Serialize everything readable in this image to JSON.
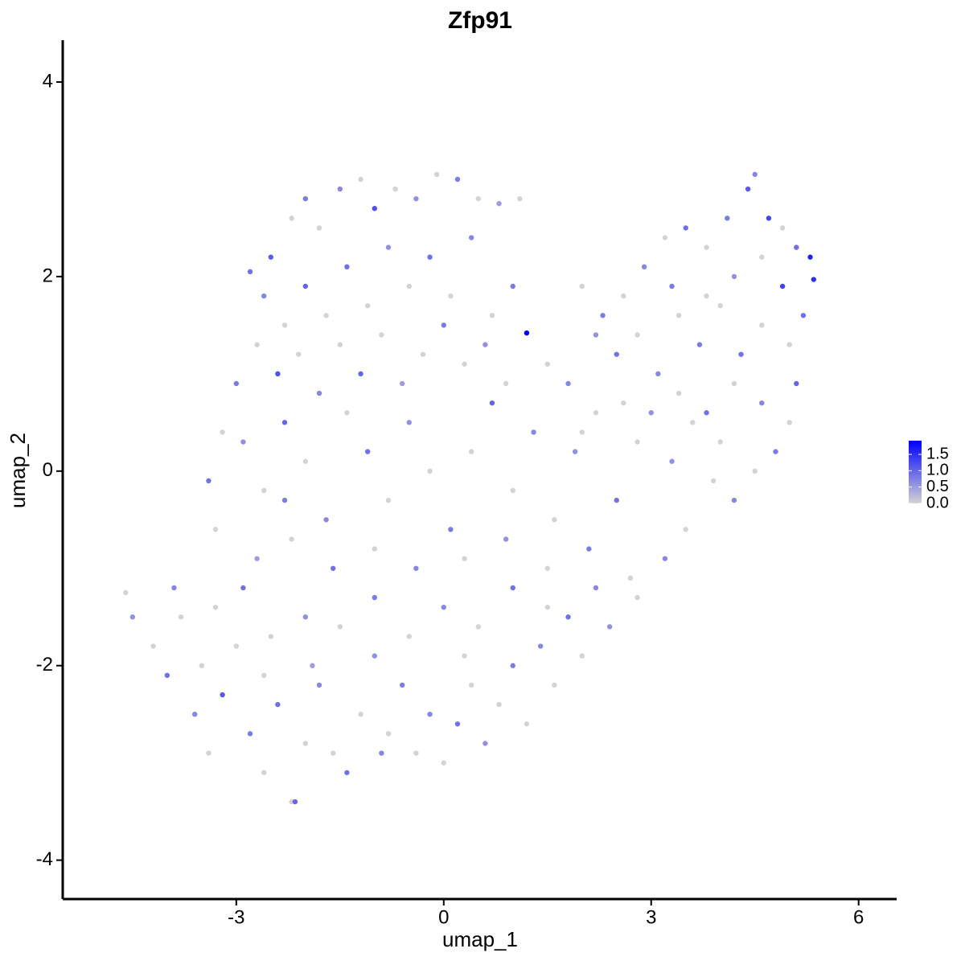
{
  "chart_data": {
    "type": "scatter",
    "title": "Zfp91",
    "x_label": "umap_1",
    "y_label": "umap_2",
    "xlim": [
      -5.51,
      6.55
    ],
    "ylim": [
      -4.4,
      4.43
    ],
    "xticks": [
      -3,
      0,
      3,
      6
    ],
    "yticks": [
      -4,
      -2,
      0,
      2,
      4
    ],
    "color_low": "#d3d3d3",
    "color_high": "#0000ff",
    "colorlim": [
      0,
      1.92
    ],
    "color_ticks": [
      {
        "value": 0,
        "label": "0.0"
      },
      {
        "value": 0.5,
        "label": "0.5"
      },
      {
        "value": 1,
        "label": "1.0"
      },
      {
        "value": 1.5,
        "label": "1.5"
      }
    ],
    "x": [
      -2.8,
      -2.5,
      -2.2,
      -2.0,
      -1.8,
      -1.5,
      -1.2,
      -1.0,
      -0.7,
      -0.4,
      -0.1,
      0.2,
      0.5,
      0.8,
      1.1,
      -2.6,
      -2.3,
      -2.0,
      -1.7,
      -1.4,
      -1.1,
      -0.8,
      -0.5,
      -0.2,
      0.1,
      0.4,
      0.7,
      1.0,
      -2.7,
      -2.4,
      -2.1,
      -1.8,
      -1.5,
      -1.2,
      -0.9,
      -0.6,
      -0.3,
      0.0,
      0.3,
      0.6,
      0.9,
      1.2,
      1.5,
      1.8,
      -3.0,
      -3.2,
      -3.4,
      -3.3,
      -2.9,
      -2.6,
      -2.3,
      -2.0,
      -1.7,
      -1.4,
      -1.1,
      -0.8,
      -0.5,
      -0.2,
      0.1,
      0.4,
      0.7,
      1.0,
      1.3,
      1.6,
      1.9,
      2.2,
      2.5,
      2.8,
      -2.7,
      -2.2,
      -1.6,
      -1.0,
      -0.4,
      0.3,
      0.9,
      1.5,
      2.1,
      2.7,
      3.2,
      3.5,
      3.3,
      3.6,
      2.0,
      2.3,
      2.6,
      2.9,
      3.2,
      3.5,
      3.8,
      4.1,
      4.4,
      4.5,
      4.7,
      4.9,
      5.1,
      5.3,
      5.35,
      5.2,
      5.0,
      5.1,
      5.0,
      4.8,
      4.5,
      4.2,
      3.9,
      2.5,
      2.8,
      3.1,
      3.4,
      3.7,
      4.0,
      4.3,
      4.6,
      4.9,
      4.6,
      4.2,
      3.8,
      3.3,
      2.6,
      3.0,
      3.4,
      3.8,
      4.2,
      4.6,
      4.0,
      2.2,
      2.0,
      -4.6,
      -4.5,
      -4.2,
      -4.0,
      -3.8,
      -3.6,
      -3.4,
      -3.2,
      -3.0,
      -2.8,
      -2.6,
      -2.4,
      -2.2,
      -2.15,
      -2.0,
      -1.8,
      -1.6,
      -1.4,
      -1.2,
      -1.0,
      -0.8,
      -0.6,
      -0.4,
      -0.2,
      0.0,
      0.2,
      0.4,
      0.6,
      0.8,
      1.0,
      1.2,
      1.4,
      1.6,
      1.8,
      2.0,
      2.4,
      2.8,
      -3.9,
      -3.3,
      -2.9,
      -2.5,
      -2.0,
      -1.5,
      -1.0,
      -0.5,
      0.0,
      0.5,
      1.0,
      1.5,
      2.2,
      -2.6,
      -1.9,
      -0.9,
      0.3,
      -3.5,
      -2.3
    ],
    "values": [
      2.05,
      2.2,
      2.6,
      2.8,
      2.5,
      2.9,
      3.0,
      2.7,
      2.9,
      2.8,
      3.05,
      3.0,
      2.8,
      2.75,
      2.8,
      1.8,
      1.5,
      1.9,
      1.6,
      2.1,
      1.7,
      2.3,
      1.9,
      2.2,
      1.8,
      2.4,
      1.6,
      1.9,
      1.3,
      1.0,
      1.2,
      0.8,
      1.3,
      1.0,
      1.4,
      0.9,
      1.2,
      1.5,
      1.1,
      1.3,
      0.9,
      1.42,
      1.1,
      0.9,
      0.9,
      0.4,
      -0.1,
      -0.6,
      0.3,
      -0.2,
      0.5,
      0.1,
      -0.5,
      0.6,
      0.2,
      -0.3,
      0.5,
      0.0,
      -0.6,
      0.2,
      0.7,
      -0.2,
      0.4,
      -0.5,
      0.2,
      0.6,
      -0.3,
      0.3,
      -0.9,
      -0.7,
      -1.0,
      -0.8,
      -1.0,
      -0.9,
      -0.7,
      -1.0,
      -0.8,
      -1.1,
      -0.9,
      -0.6,
      0.1,
      0.5,
      1.9,
      1.6,
      1.8,
      2.1,
      2.4,
      2.5,
      2.3,
      2.6,
      2.9,
      3.05,
      2.6,
      2.5,
      2.3,
      2.2,
      1.97,
      1.6,
      1.3,
      0.9,
      0.5,
      0.2,
      0.0,
      -0.3,
      -0.1,
      1.2,
      1.4,
      1.0,
      1.6,
      1.3,
      1.7,
      1.2,
      1.5,
      1.9,
      2.2,
      2.0,
      1.8,
      1.9,
      0.7,
      0.6,
      0.8,
      0.6,
      0.9,
      0.7,
      0.3,
      1.4,
      0.4,
      -1.25,
      -1.5,
      -1.8,
      -2.1,
      -1.5,
      -2.5,
      -2.9,
      -2.3,
      -1.8,
      -2.7,
      -3.1,
      -2.4,
      -3.4,
      -3.4,
      -2.8,
      -2.2,
      -2.9,
      -3.1,
      -2.5,
      -1.9,
      -2.7,
      -2.2,
      -2.9,
      -2.5,
      -3.0,
      -2.6,
      -2.2,
      -2.8,
      -2.4,
      -2.0,
      -2.6,
      -1.8,
      -2.2,
      -1.5,
      -1.9,
      -1.6,
      -1.3,
      -1.2,
      -1.4,
      -1.2,
      -1.7,
      -1.5,
      -1.6,
      -1.3,
      -1.7,
      -1.4,
      -1.6,
      -1.2,
      -1.4,
      -1.2,
      -2.1,
      -2.0,
      -2.9,
      -1.9,
      -2.0,
      -0.3
    ],
    "expression": [
      0.9,
      1.1,
      0,
      0.8,
      0,
      0.7,
      0,
      1.2,
      0,
      0.6,
      0,
      0.8,
      0,
      0.5,
      0,
      0.7,
      0,
      1.0,
      0,
      0.9,
      0,
      0.6,
      0,
      0.9,
      0,
      0.7,
      0,
      0.8,
      0,
      1.2,
      0,
      0.7,
      0,
      1.0,
      0,
      0.5,
      0,
      0.8,
      0,
      0.6,
      0,
      1.9,
      0,
      0.7,
      0.8,
      0,
      0.9,
      0,
      0.6,
      0,
      1.0,
      0,
      0.7,
      0,
      0.9,
      0,
      0.6,
      0,
      0.8,
      0,
      1.0,
      0,
      0.7,
      0,
      0.6,
      0,
      0.9,
      0,
      0.5,
      0,
      0.9,
      0,
      0.7,
      0,
      0.6,
      0,
      0.8,
      0,
      0.7,
      0,
      0.6,
      0,
      0,
      0.8,
      0,
      0.7,
      0,
      0.9,
      0,
      0.8,
      1.1,
      0.7,
      1.3,
      0,
      0.9,
      1.6,
      1.5,
      0.9,
      0,
      1.0,
      0,
      0.8,
      0,
      0.7,
      0,
      0.9,
      0,
      0.7,
      0,
      0.8,
      0,
      0.9,
      0,
      1.3,
      0,
      0.6,
      0,
      0.8,
      0,
      0.6,
      0,
      0.9,
      0,
      0.7,
      0,
      0.6,
      0,
      0,
      0.6,
      0,
      0.9,
      0,
      0.7,
      0,
      1.1,
      0,
      0.8,
      0,
      0.9,
      0,
      1.0,
      0,
      0.7,
      0,
      0.9,
      0,
      0.6,
      0,
      0.8,
      0,
      0.7,
      0,
      0.9,
      0,
      0.6,
      0,
      0.8,
      0,
      0.7,
      0,
      0.9,
      0,
      0.6,
      0,
      0.7,
      0,
      0.9,
      0,
      0.6,
      0,
      0.8,
      0,
      0.7,
      0,
      0.9,
      0,
      0.7,
      0,
      0.5,
      0.7,
      0,
      0,
      0.8
    ]
  }
}
